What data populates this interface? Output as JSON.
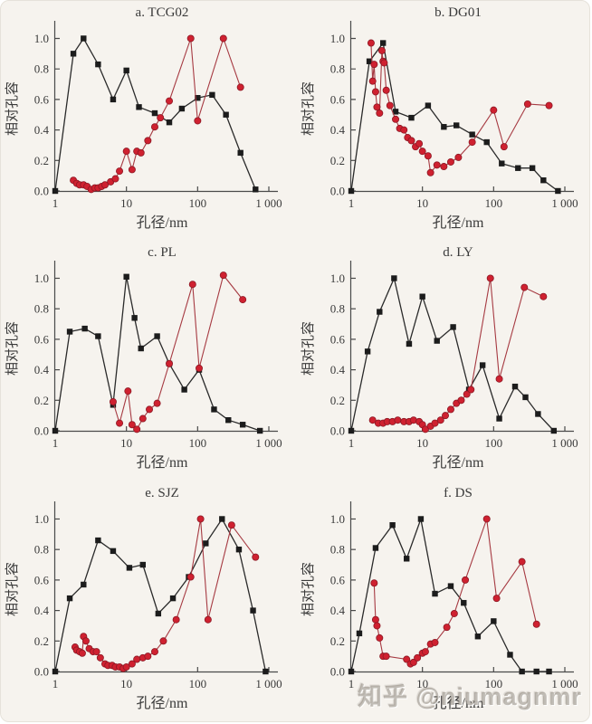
{
  "page": {
    "watermark": "知乎 @niumagnmr",
    "colors": {
      "background": "#f6f3ee",
      "axis": "#4a4a4a",
      "black_series": "#1c1c1c",
      "red_marker": "#cf2130",
      "red_edge": "#8c1824",
      "red_line": "#a63a42"
    }
  },
  "chart_data": [
    {
      "id": "tcg02",
      "type": "line",
      "title": "a. TCG02",
      "xlabel": "孔径/nm",
      "ylabel": "相对孔容",
      "xscale": "log",
      "xlim": [
        1,
        1000
      ],
      "ylim": [
        0,
        1.08
      ],
      "xticks": [
        1,
        10,
        100,
        1000
      ],
      "xtick_labels": [
        "1",
        "10",
        "100",
        "1 000"
      ],
      "yticks": [
        0,
        0.2,
        0.4,
        0.6,
        0.8,
        1.0
      ],
      "ytick_labels": [
        "0.0",
        "0.2",
        "0.4",
        "0.6",
        "0.8",
        "1.0"
      ],
      "grid": false,
      "legend": "none",
      "series": [
        {
          "name": "black-squares",
          "marker": "square",
          "color": "#1c1c1c",
          "line_color": "#2a2a2a",
          "x": [
            1,
            1.8,
            2.5,
            4,
            6.5,
            10,
            15,
            25,
            40,
            60,
            100,
            160,
            250,
            400,
            650
          ],
          "y": [
            0.0,
            0.9,
            1.0,
            0.83,
            0.6,
            0.79,
            0.55,
            0.51,
            0.45,
            0.54,
            0.61,
            0.63,
            0.5,
            0.25,
            0.01
          ]
        },
        {
          "name": "red-circles",
          "marker": "circle",
          "color": "#cf2130",
          "edge_color": "#8c1824",
          "line_color": "#a63a42",
          "x": [
            1.8,
            2.0,
            2.2,
            2.5,
            2.8,
            3.2,
            3.6,
            4.0,
            4.5,
            5,
            6,
            7,
            8,
            10,
            12,
            14,
            16,
            20,
            25,
            30,
            40,
            80,
            100,
            230,
            400
          ],
          "y": [
            0.07,
            0.05,
            0.04,
            0.04,
            0.03,
            0.01,
            0.02,
            0.02,
            0.03,
            0.04,
            0.06,
            0.08,
            0.13,
            0.26,
            0.14,
            0.26,
            0.25,
            0.33,
            0.42,
            0.48,
            0.59,
            1.0,
            0.46,
            1.0,
            0.68
          ]
        }
      ]
    },
    {
      "id": "dg01",
      "type": "line",
      "title": "b. DG01",
      "xlabel": "孔径/nm",
      "ylabel": "相对孔容",
      "xscale": "log",
      "xlim": [
        1,
        1000
      ],
      "ylim": [
        0,
        1.08
      ],
      "xticks": [
        1,
        10,
        100,
        1000
      ],
      "xtick_labels": [
        "1",
        "10",
        "100",
        "1 000"
      ],
      "yticks": [
        0,
        0.2,
        0.4,
        0.6,
        0.8,
        1.0
      ],
      "ytick_labels": [
        "0.0",
        "0.2",
        "0.4",
        "0.6",
        "0.8",
        "1.0"
      ],
      "grid": false,
      "legend": "none",
      "series": [
        {
          "name": "black-squares",
          "marker": "square",
          "color": "#1c1c1c",
          "line_color": "#2a2a2a",
          "x": [
            1,
            1.8,
            2.8,
            4.2,
            7,
            12,
            20,
            30,
            50,
            80,
            130,
            220,
            350,
            500,
            800
          ],
          "y": [
            0.0,
            0.85,
            0.97,
            0.52,
            0.48,
            0.56,
            0.42,
            0.43,
            0.37,
            0.32,
            0.18,
            0.15,
            0.15,
            0.07,
            0.0
          ]
        },
        {
          "name": "red-circles",
          "marker": "circle",
          "color": "#cf2130",
          "edge_color": "#8c1824",
          "line_color": "#a63a42",
          "x": [
            1.9,
            2.0,
            2.1,
            2.2,
            2.3,
            2.5,
            2.7,
            2.8,
            2.9,
            3.1,
            3.5,
            4.2,
            4.8,
            5.5,
            6.2,
            7,
            8,
            9,
            10,
            12,
            13,
            16,
            20,
            25,
            32,
            50,
            100,
            140,
            300,
            600
          ],
          "y": [
            0.97,
            0.72,
            0.83,
            0.65,
            0.55,
            0.51,
            0.92,
            0.85,
            0.84,
            0.66,
            0.56,
            0.47,
            0.41,
            0.4,
            0.35,
            0.33,
            0.29,
            0.31,
            0.26,
            0.23,
            0.12,
            0.17,
            0.16,
            0.19,
            0.22,
            0.32,
            0.53,
            0.29,
            0.57,
            0.56
          ]
        }
      ]
    },
    {
      "id": "pl",
      "type": "line",
      "title": "c. PL",
      "xlabel": "孔径/nm",
      "ylabel": "相对孔容",
      "xscale": "log",
      "xlim": [
        1,
        1000
      ],
      "ylim": [
        0,
        1.08
      ],
      "xticks": [
        1,
        10,
        100,
        1000
      ],
      "xtick_labels": [
        "1",
        "10",
        "100",
        "1 000"
      ],
      "yticks": [
        0,
        0.2,
        0.4,
        0.6,
        0.8,
        1.0
      ],
      "ytick_labels": [
        "0.0",
        "0.2",
        "0.4",
        "0.6",
        "0.8",
        "1.0"
      ],
      "grid": false,
      "legend": "none",
      "series": [
        {
          "name": "black-squares",
          "marker": "square",
          "color": "#1c1c1c",
          "line_color": "#2a2a2a",
          "x": [
            1,
            1.6,
            2.6,
            4,
            6.5,
            10,
            13,
            16,
            27,
            40,
            65,
            105,
            170,
            270,
            430,
            750
          ],
          "y": [
            0.0,
            0.65,
            0.67,
            0.62,
            0.17,
            1.01,
            0.74,
            0.54,
            0.62,
            0.44,
            0.27,
            0.4,
            0.14,
            0.07,
            0.04,
            0.0
          ]
        },
        {
          "name": "red-circles",
          "marker": "circle",
          "color": "#cf2130",
          "edge_color": "#8c1824",
          "line_color": "#a63a42",
          "x": [
            6.5,
            8,
            10.5,
            12,
            14,
            17,
            21,
            27,
            40,
            85,
            105,
            230,
            430
          ],
          "y": [
            0.19,
            0.05,
            0.26,
            0.04,
            0.01,
            0.08,
            0.14,
            0.18,
            0.44,
            0.96,
            0.41,
            1.02,
            0.86
          ]
        }
      ]
    },
    {
      "id": "ly",
      "type": "line",
      "title": "d. LY",
      "xlabel": "孔径/nm",
      "ylabel": "相对孔容",
      "xscale": "log",
      "xlim": [
        1,
        1000
      ],
      "ylim": [
        0,
        1.08
      ],
      "xticks": [
        1,
        10,
        100,
        1000
      ],
      "xtick_labels": [
        "1",
        "10",
        "100",
        "1 000"
      ],
      "yticks": [
        0,
        0.2,
        0.4,
        0.6,
        0.8,
        1.0
      ],
      "ytick_labels": [
        "0.0",
        "0.2",
        "0.4",
        "0.6",
        "0.8",
        "1.0"
      ],
      "grid": false,
      "legend": "none",
      "series": [
        {
          "name": "black-squares",
          "marker": "square",
          "color": "#1c1c1c",
          "line_color": "#2a2a2a",
          "x": [
            1,
            1.7,
            2.5,
            4,
            6.5,
            10,
            16,
            27,
            45,
            70,
            120,
            200,
            280,
            420,
            700
          ],
          "y": [
            0.0,
            0.52,
            0.78,
            1.0,
            0.57,
            0.88,
            0.59,
            0.68,
            0.27,
            0.43,
            0.08,
            0.29,
            0.22,
            0.11,
            0.0
          ]
        },
        {
          "name": "red-circles",
          "marker": "circle",
          "color": "#cf2130",
          "edge_color": "#8c1824",
          "line_color": "#a63a42",
          "x": [
            2,
            2.4,
            2.8,
            3.2,
            3.8,
            4.5,
            5.5,
            6.5,
            7.5,
            9,
            10,
            11,
            13,
            15,
            18,
            21,
            25,
            30,
            35,
            42,
            48,
            90,
            120,
            270,
            500
          ],
          "y": [
            0.07,
            0.05,
            0.05,
            0.06,
            0.06,
            0.07,
            0.06,
            0.06,
            0.07,
            0.06,
            0.04,
            0.01,
            0.03,
            0.05,
            0.07,
            0.1,
            0.14,
            0.18,
            0.2,
            0.24,
            0.27,
            1.0,
            0.34,
            0.94,
            0.88
          ]
        }
      ]
    },
    {
      "id": "sjz",
      "type": "line",
      "title": "e. SJZ",
      "xlabel": "孔径/nm",
      "ylabel": "相对孔容",
      "xscale": "log",
      "xlim": [
        1,
        1000
      ],
      "ylim": [
        0,
        1.08
      ],
      "xticks": [
        1,
        10,
        100,
        1000
      ],
      "xtick_labels": [
        "1",
        "10",
        "100",
        "1 000"
      ],
      "yticks": [
        0,
        0.2,
        0.4,
        0.6,
        0.8,
        1.0
      ],
      "ytick_labels": [
        "0.0",
        "0.2",
        "0.4",
        "0.6",
        "0.8",
        "1.0"
      ],
      "grid": false,
      "legend": "none",
      "series": [
        {
          "name": "black-squares",
          "marker": "square",
          "color": "#1c1c1c",
          "line_color": "#2a2a2a",
          "x": [
            1,
            1.6,
            2.5,
            4,
            6.5,
            11,
            17,
            28,
            45,
            75,
            130,
            220,
            380,
            600,
            900
          ],
          "y": [
            0.0,
            0.48,
            0.57,
            0.86,
            0.79,
            0.68,
            0.7,
            0.38,
            0.48,
            0.62,
            0.84,
            1.0,
            0.8,
            0.4,
            0.0
          ]
        },
        {
          "name": "red-circles",
          "marker": "circle",
          "color": "#cf2130",
          "edge_color": "#8c1824",
          "line_color": "#a63a42",
          "x": [
            1.9,
            2.0,
            2.2,
            2.4,
            2.5,
            2.7,
            3.0,
            3.4,
            3.8,
            4.3,
            5,
            5.5,
            6.3,
            7,
            8,
            9,
            10,
            12,
            14,
            17,
            20,
            25,
            33,
            50,
            80,
            110,
            140,
            300,
            650
          ],
          "y": [
            0.16,
            0.14,
            0.13,
            0.12,
            0.23,
            0.2,
            0.15,
            0.13,
            0.13,
            0.09,
            0.05,
            0.04,
            0.04,
            0.03,
            0.03,
            0.02,
            0.03,
            0.05,
            0.08,
            0.09,
            0.1,
            0.13,
            0.2,
            0.34,
            0.62,
            1.0,
            0.34,
            0.96,
            0.75
          ]
        }
      ]
    },
    {
      "id": "ds",
      "type": "line",
      "title": "f. DS",
      "xlabel": "孔径/nm",
      "ylabel": "相对孔容",
      "xscale": "log",
      "xlim": [
        1,
        1000
      ],
      "ylim": [
        0,
        1.08
      ],
      "xticks": [
        1,
        10,
        100,
        1000
      ],
      "xtick_labels": [
        "1",
        "10",
        "100",
        "1 000"
      ],
      "yticks": [
        0,
        0.2,
        0.4,
        0.6,
        0.8,
        1.0
      ],
      "ytick_labels": [
        "0.0",
        "0.2",
        "0.4",
        "0.6",
        "0.8",
        "1.0"
      ],
      "grid": false,
      "legend": "none",
      "series": [
        {
          "name": "black-squares",
          "marker": "square",
          "color": "#1c1c1c",
          "line_color": "#2a2a2a",
          "x": [
            1,
            1.3,
            2.2,
            3.8,
            6,
            9.5,
            15,
            25,
            38,
            60,
            100,
            170,
            250,
            400,
            600
          ],
          "y": [
            0.0,
            0.25,
            0.81,
            0.96,
            0.74,
            1.0,
            0.51,
            0.56,
            0.45,
            0.23,
            0.33,
            0.11,
            0.0,
            0.0,
            0.0
          ]
        },
        {
          "name": "red-circles",
          "marker": "circle",
          "color": "#cf2130",
          "edge_color": "#8c1824",
          "line_color": "#a63a42",
          "x": [
            2.1,
            2.2,
            2.3,
            2.5,
            2.8,
            3.1,
            6,
            6.8,
            7.5,
            8.5,
            10,
            11,
            13,
            15,
            22,
            28,
            40,
            80,
            110,
            250,
            400
          ],
          "y": [
            0.58,
            0.34,
            0.3,
            0.22,
            0.1,
            0.1,
            0.08,
            0.05,
            0.06,
            0.09,
            0.12,
            0.13,
            0.18,
            0.19,
            0.29,
            0.38,
            0.6,
            1.0,
            0.48,
            0.72,
            0.31
          ]
        }
      ]
    }
  ]
}
